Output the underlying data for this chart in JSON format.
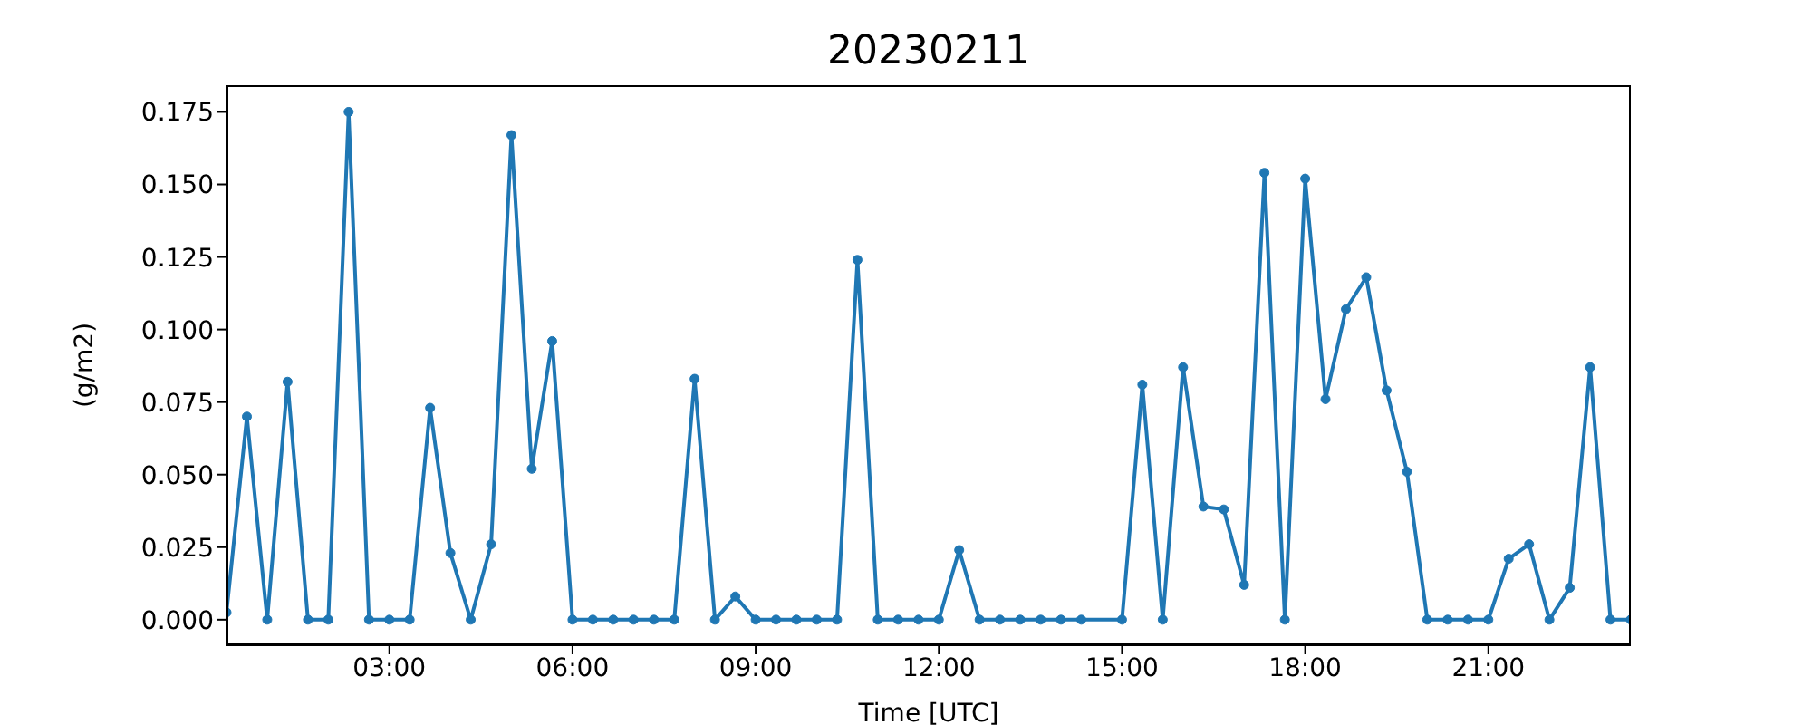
{
  "chart_data": {
    "type": "line",
    "title": "20230211",
    "xlabel": "Time [UTC]",
    "ylabel": "(g/m2)",
    "x": [
      0.333,
      0.667,
      1,
      1.333,
      1.667,
      2,
      2.333,
      2.667,
      3,
      3.333,
      3.667,
      4,
      4.333,
      4.667,
      5,
      5.333,
      5.667,
      6,
      6.333,
      6.667,
      7,
      7.333,
      7.667,
      8,
      8.333,
      8.667,
      9,
      9.333,
      9.667,
      10,
      10.333,
      10.667,
      11,
      11.333,
      11.667,
      12,
      12.333,
      12.667,
      13,
      13.333,
      13.667,
      14,
      14.333,
      15,
      15.333,
      15.667,
      16,
      16.333,
      16.667,
      17,
      17.333,
      17.667,
      18,
      18.333,
      18.667,
      19,
      19.333,
      19.667,
      20,
      20.333,
      20.667,
      21,
      21.333,
      21.667,
      22,
      22.333,
      22.667,
      23,
      23.333
    ],
    "series": [
      {
        "color": "#1f77b4",
        "values": [
          0.0025,
          0.07,
          0,
          0.082,
          0,
          0,
          0.175,
          0,
          0,
          0,
          0.073,
          0.023,
          0,
          0.026,
          0.167,
          0.052,
          0.096,
          0,
          0,
          0,
          0,
          0,
          0,
          0.083,
          0,
          0.008,
          0,
          0,
          0,
          0,
          0,
          0.124,
          0,
          0,
          0,
          0,
          0.024,
          0,
          0,
          0,
          0,
          0,
          0,
          0,
          0.081,
          0,
          0.087,
          0.039,
          0.038,
          0.012,
          0.154,
          0,
          0.152,
          0.076,
          0.107,
          0.118,
          0.079,
          0.051,
          0,
          0,
          0,
          0,
          0.021,
          0.026,
          0,
          0.011,
          0.087,
          0,
          0
        ]
      }
    ],
    "xlim": [
      0.333,
      23.333
    ],
    "xticks": [
      {
        "value": 3,
        "label": "03:00"
      },
      {
        "value": 6,
        "label": "06:00"
      },
      {
        "value": 9,
        "label": "09:00"
      },
      {
        "value": 12,
        "label": "12:00"
      },
      {
        "value": 15,
        "label": "15:00"
      },
      {
        "value": 18,
        "label": "18:00"
      },
      {
        "value": 21,
        "label": "21:00"
      }
    ],
    "ylim": [
      -0.0088,
      0.1842
    ],
    "yticks": [
      {
        "value": 0,
        "label": "0.000"
      },
      {
        "value": 0.025,
        "label": "0.025"
      },
      {
        "value": 0.05,
        "label": "0.050"
      },
      {
        "value": 0.075,
        "label": "0.075"
      },
      {
        "value": 0.1,
        "label": "0.100"
      },
      {
        "value": 0.125,
        "label": "0.125"
      },
      {
        "value": 0.15,
        "label": "0.150"
      },
      {
        "value": 0.175,
        "label": "0.175"
      }
    ],
    "marker": "circle",
    "line_style": "solid",
    "grid": false,
    "legend": false
  }
}
